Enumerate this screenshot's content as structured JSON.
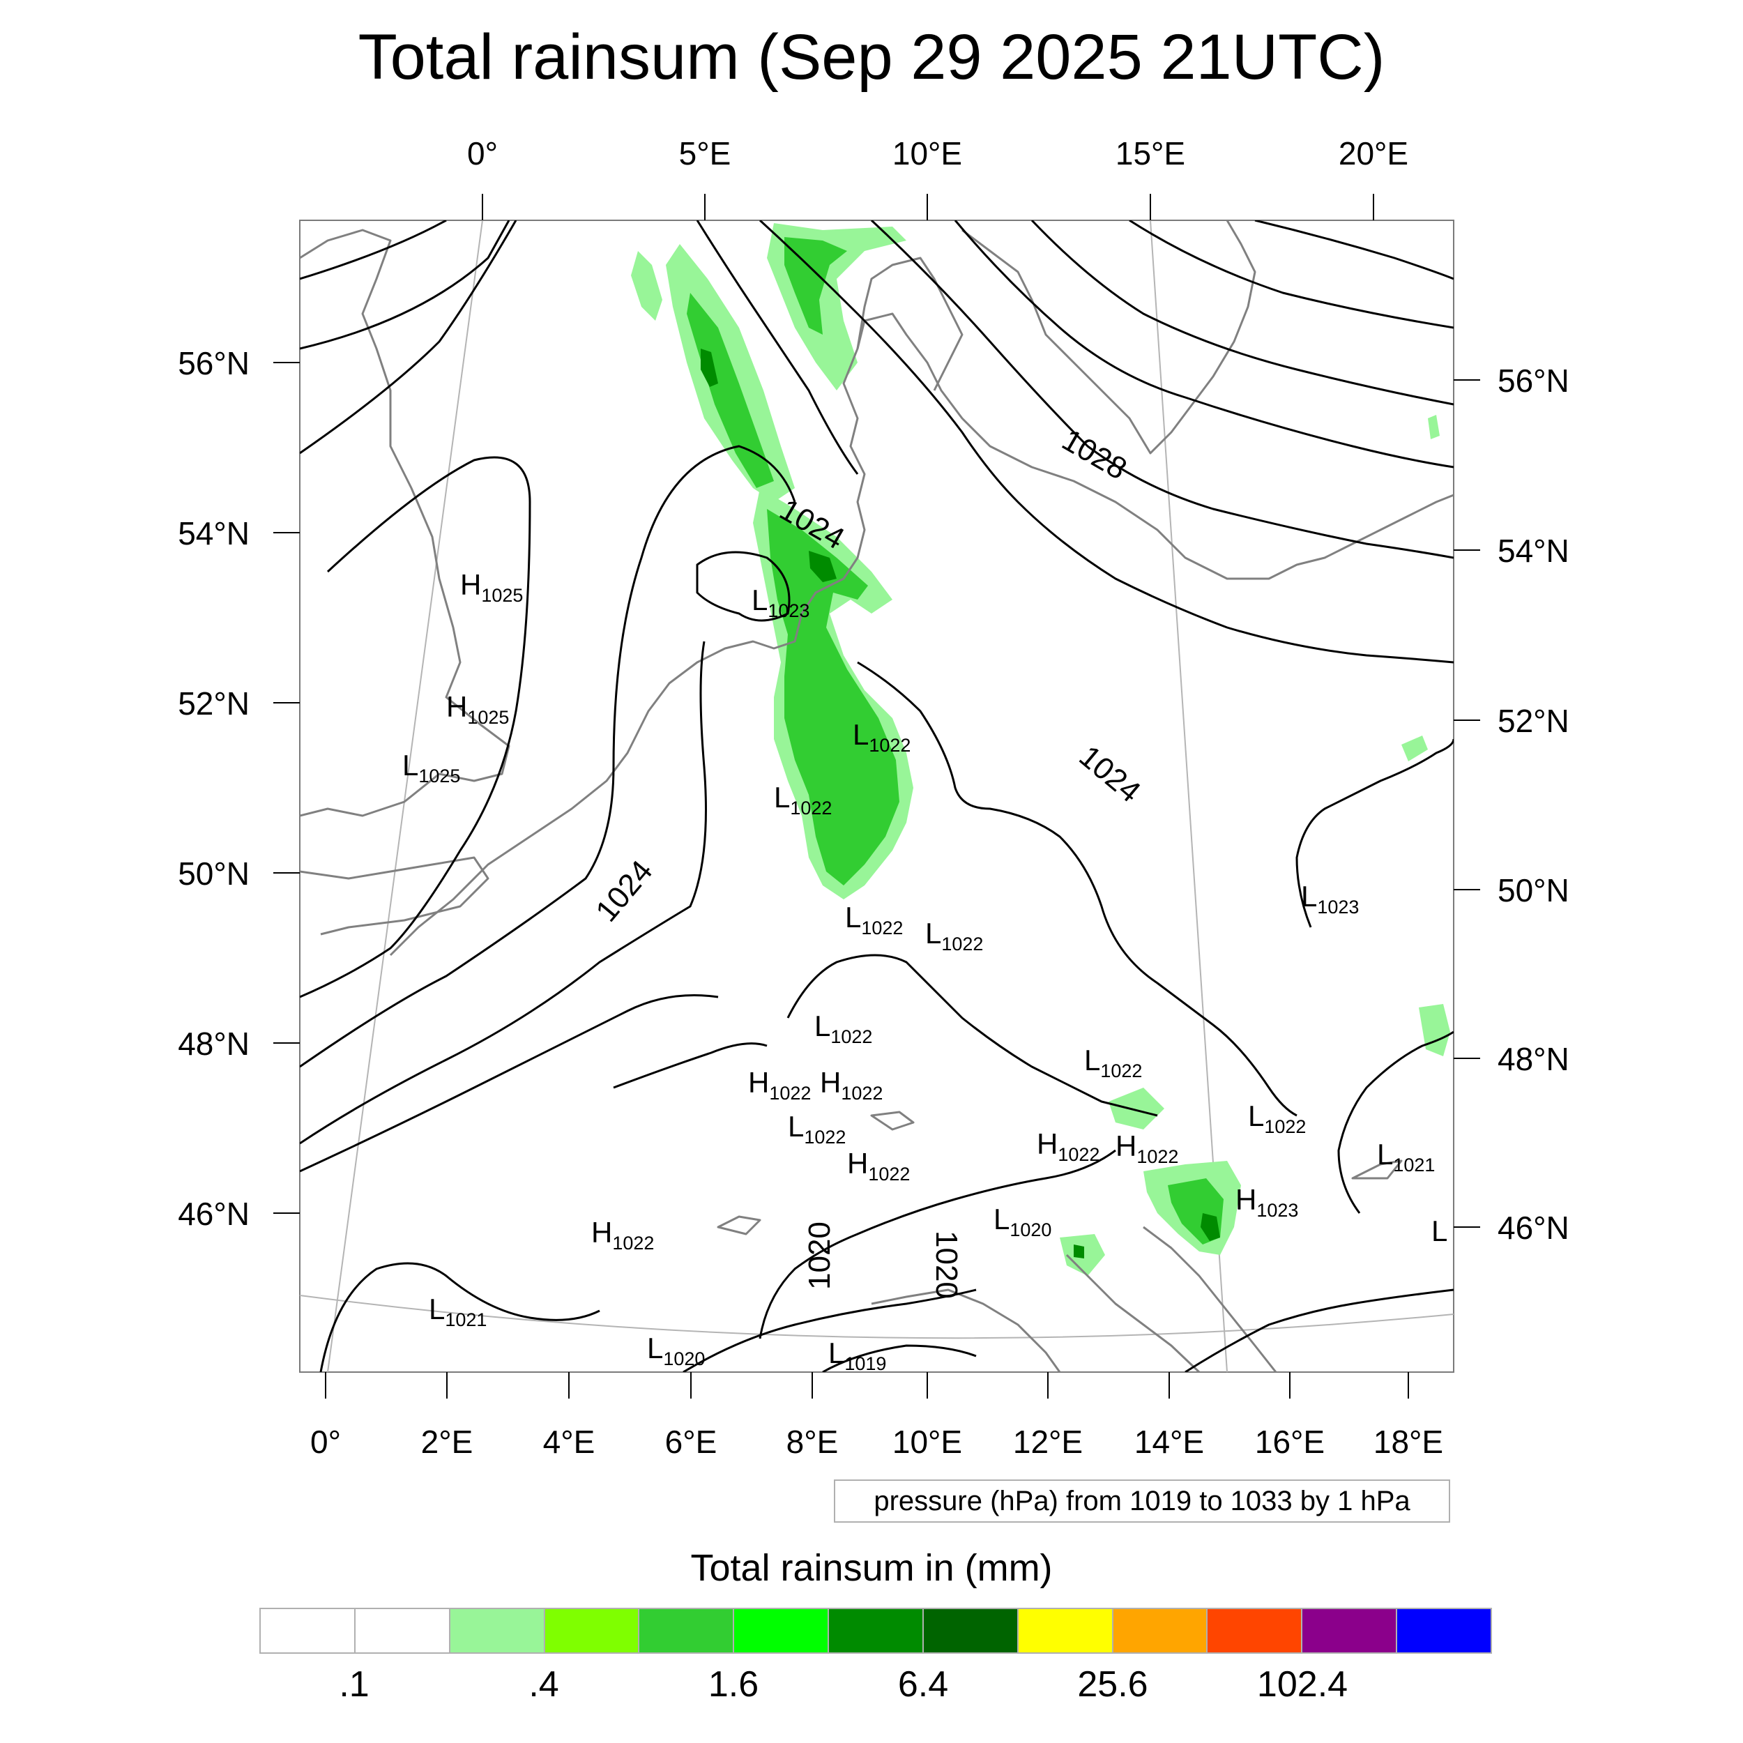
{
  "title": "Total rainsum (Sep 29 2025 21UTC)",
  "top_lon_ticks": [
    "0°",
    "5°E",
    "10°E",
    "15°E",
    "20°E"
  ],
  "bottom_lon_ticks": [
    "0°",
    "2°E",
    "4°E",
    "6°E",
    "8°E",
    "10°E",
    "12°E",
    "14°E",
    "16°E",
    "18°E"
  ],
  "left_lat_ticks": [
    "56°N",
    "54°N",
    "52°N",
    "50°N",
    "48°N",
    "46°N"
  ],
  "right_lat_ticks": [
    "56°N",
    "54°N",
    "52°N",
    "50°N",
    "48°N",
    "46°N"
  ],
  "contour_labels": [
    "1028",
    "1024",
    "1024",
    "1024",
    "1020",
    "1020"
  ],
  "pressure_centers": [
    {
      "type": "H",
      "value": "1025"
    },
    {
      "type": "L",
      "value": "1023"
    },
    {
      "type": "H",
      "value": "1025"
    },
    {
      "type": "L",
      "value": "1022"
    },
    {
      "type": "L",
      "value": "1025"
    },
    {
      "type": "L",
      "value": "1022"
    },
    {
      "type": "L",
      "value": "1022"
    },
    {
      "type": "L",
      "value": "1022"
    },
    {
      "type": "L",
      "value": "1023"
    },
    {
      "type": "L",
      "value": "1022"
    },
    {
      "type": "L",
      "value": "1022"
    },
    {
      "type": "H",
      "value": "1022"
    },
    {
      "type": "H",
      "value": "1022"
    },
    {
      "type": "L",
      "value": "1022"
    },
    {
      "type": "L",
      "value": "1022"
    },
    {
      "type": "H",
      "value": "1022"
    },
    {
      "type": "H",
      "value": "1022"
    },
    {
      "type": "H",
      "value": "1022"
    },
    {
      "type": "L",
      "value": "1021"
    },
    {
      "type": "H",
      "value": "1023"
    },
    {
      "type": "H",
      "value": "1022"
    },
    {
      "type": "L",
      "value": "1020"
    },
    {
      "type": "L",
      "value": "1021"
    },
    {
      "type": "L",
      "value": "1020"
    },
    {
      "type": "L",
      "value": "1019"
    },
    {
      "type": "L",
      "value": ""
    }
  ],
  "pressure_note": "pressure (hPa) from 1019 to 1033 by 1 hPa",
  "legend": {
    "title": "Total rainsum in (mm)",
    "labels": [
      ".1",
      ".4",
      "1.6",
      "6.4",
      "25.6",
      "102.4"
    ],
    "colors": [
      "#ffffff",
      "#ffffff",
      "#98f598",
      "#7fff00",
      "#32cd32",
      "#00ff00",
      "#008b00",
      "#006400",
      "#ffff00",
      "#ffa500",
      "#ff4500",
      "#8b008b",
      "#0000ff"
    ]
  },
  "colors": {
    "rain_light": "#98f598",
    "rain_moderate": "#32cd32",
    "rain_heavy": "#008b00",
    "isobar": "#000000",
    "coastline": "#808080",
    "graticule": "#b4b4b4"
  }
}
